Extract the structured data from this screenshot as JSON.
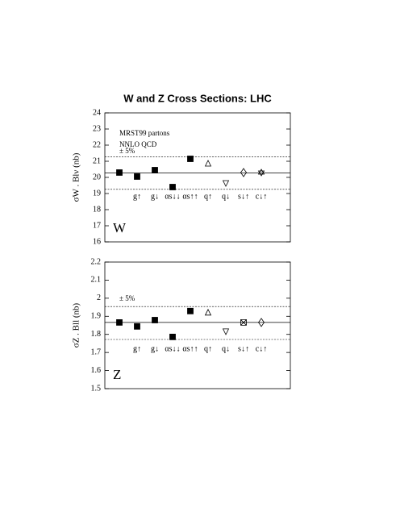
{
  "chart_data": [
    {
      "type": "scatter",
      "title": "W and Z Cross Sections: LHC",
      "y_label": "σW . Blν   (nb)",
      "panel_label": "W",
      "annotations": [
        "MRST99 partons",
        "NNLO QCD",
        "± 5%"
      ],
      "categories": [
        null,
        "g↑",
        "g↓",
        "αs↓↓",
        "αs↑↑",
        "q↑",
        "q↓",
        "s↓↑",
        "c↓↑"
      ],
      "values": [
        20.3,
        20.05,
        20.45,
        19.4,
        21.15,
        20.85,
        19.65,
        20.3,
        20.3
      ],
      "markers": [
        "square",
        "square",
        "square",
        "square",
        "square",
        "triangle-up",
        "triangle-down",
        "diamond",
        "hexagram"
      ],
      "reference_lines": [
        {
          "value": 20.27,
          "style": "solid"
        },
        {
          "value": 21.28,
          "style": "dashed"
        },
        {
          "value": 19.26,
          "style": "dashed"
        }
      ],
      "ylim": [
        16,
        24
      ],
      "yticks": [
        16,
        17,
        18,
        19,
        20,
        21,
        22,
        23,
        24
      ]
    },
    {
      "type": "scatter",
      "y_label": "σZ . Bll   (nb)",
      "panel_label": "Z",
      "annotations": [
        "± 5%"
      ],
      "categories": [
        null,
        "g↑",
        "g↓",
        "αs↓↓",
        "αs↑↑",
        "q↑",
        "q↓",
        "s↓↑",
        "c↓↑"
      ],
      "values": [
        1.866,
        1.844,
        1.879,
        1.786,
        1.929,
        1.92,
        1.817,
        1.866,
        1.866
      ],
      "markers": [
        "square",
        "square",
        "square",
        "square",
        "square",
        "triangle-up",
        "triangle-down",
        "square-cross",
        "diamond"
      ],
      "reference_lines": [
        {
          "value": 1.866,
          "style": "solid"
        },
        {
          "value": 1.954,
          "style": "dashed"
        },
        {
          "value": 1.772,
          "style": "dashed"
        }
      ],
      "ylim": [
        1.5,
        2.2
      ],
      "yticks": [
        1.5,
        1.6,
        1.7,
        1.8,
        1.9,
        2.0,
        2.1,
        2.2
      ]
    }
  ]
}
